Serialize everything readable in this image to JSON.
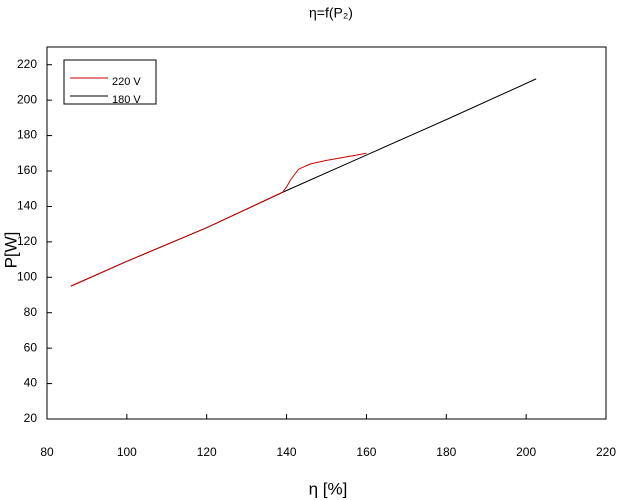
{
  "chart_data": {
    "type": "line",
    "title": "η=f(P₂)",
    "x_label": "η [%]",
    "y_label": "P[W]",
    "xlim": [
      80,
      220
    ],
    "xticks": [
      80,
      100,
      120,
      140,
      160,
      180,
      200,
      220
    ],
    "ylim": [
      20,
      230
    ],
    "yticks": [
      20,
      40,
      60,
      80,
      100,
      120,
      140,
      160,
      180,
      200,
      220
    ],
    "legend": "upper left",
    "series": [
      {
        "name": "220 V",
        "color": "#cc0000",
        "x": [
          86,
          100,
          120,
          139,
          140,
          141,
          143,
          146,
          150,
          155,
          160
        ],
        "values": [
          95,
          109,
          128,
          148,
          151,
          155,
          161,
          164,
          166,
          168,
          170
        ]
      },
      {
        "name": "180 V",
        "color": "#000000",
        "x": [
          86,
          100,
          120,
          140,
          160,
          180,
          202.5
        ],
        "values": [
          95,
          109,
          128,
          149,
          169,
          189,
          212
        ]
      }
    ]
  }
}
